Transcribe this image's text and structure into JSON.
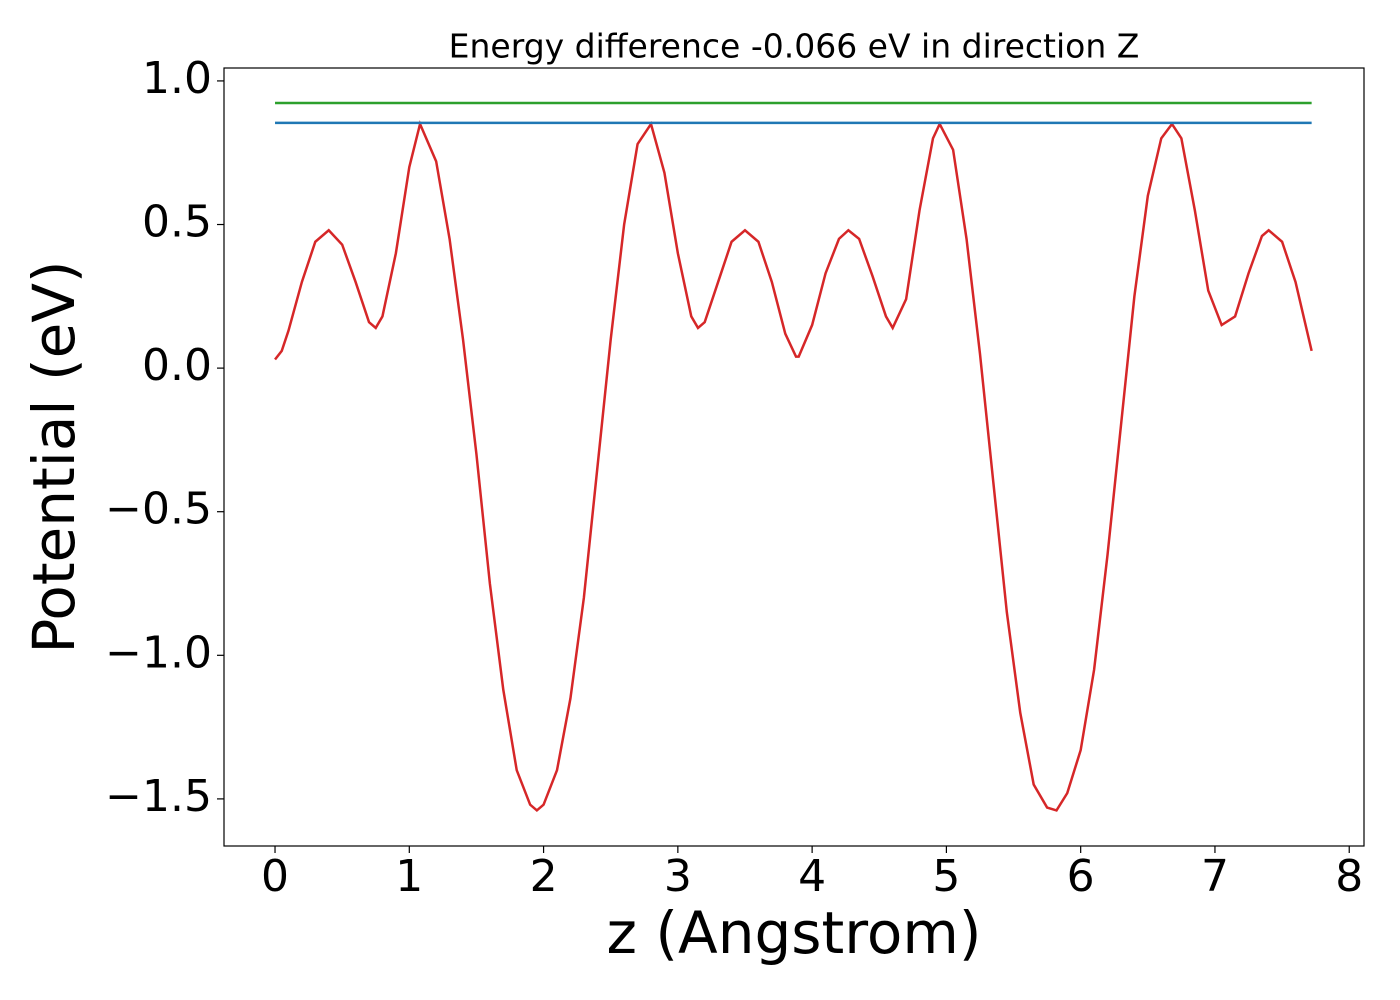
{
  "chart_data": {
    "type": "line",
    "title": "Energy difference -0.066 eV in direction Z",
    "xlabel": "z (Angstrom)",
    "ylabel": "Potential (eV)",
    "xlim": [
      -0.38,
      8.11
    ],
    "ylim": [
      -1.664,
      1.045
    ],
    "xticks": [
      0,
      1,
      2,
      3,
      4,
      5,
      6,
      7,
      8
    ],
    "yticks": [
      {
        "value": -1.5,
        "label": "−1.5"
      },
      {
        "value": -1.0,
        "label": "−1.0"
      },
      {
        "value": -0.5,
        "label": "−0.5"
      },
      {
        "value": 0.0,
        "label": "0.0"
      },
      {
        "value": 0.5,
        "label": "0.5"
      },
      {
        "value": 1.0,
        "label": "1.0"
      }
    ],
    "series": [
      {
        "color": "#d62728",
        "x": [
          0,
          0.05,
          0.1,
          0.2,
          0.3,
          0.4,
          0.5,
          0.6,
          0.7,
          0.75,
          0.8,
          0.9,
          1.0,
          1.08,
          1.2,
          1.3,
          1.4,
          1.5,
          1.6,
          1.7,
          1.8,
          1.9,
          1.95,
          2.0,
          2.1,
          2.2,
          2.3,
          2.4,
          2.5,
          2.6,
          2.7,
          2.8,
          2.9,
          3.0,
          3.1,
          3.15,
          3.2,
          3.3,
          3.4,
          3.5,
          3.6,
          3.7,
          3.8,
          3.88,
          3.9,
          4.0,
          4.1,
          4.2,
          4.27,
          4.35,
          4.45,
          4.55,
          4.6,
          4.7,
          4.8,
          4.9,
          4.95,
          5.05,
          5.15,
          5.25,
          5.35,
          5.45,
          5.55,
          5.65,
          5.75,
          5.82,
          5.9,
          6.0,
          6.1,
          6.2,
          6.3,
          6.4,
          6.5,
          6.6,
          6.68,
          6.75,
          6.85,
          6.95,
          7.05,
          7.15,
          7.25,
          7.35,
          7.4,
          7.5,
          7.6,
          7.7,
          7.72
        ],
        "values": [
          0.03,
          0.06,
          0.13,
          0.3,
          0.44,
          0.48,
          0.43,
          0.3,
          0.16,
          0.14,
          0.18,
          0.4,
          0.7,
          0.85,
          0.72,
          0.45,
          0.1,
          -0.3,
          -0.75,
          -1.12,
          -1.4,
          -1.52,
          -1.54,
          -1.52,
          -1.4,
          -1.15,
          -0.8,
          -0.35,
          0.1,
          0.5,
          0.78,
          0.85,
          0.68,
          0.4,
          0.18,
          0.14,
          0.16,
          0.3,
          0.44,
          0.48,
          0.44,
          0.3,
          0.12,
          0.04,
          0.04,
          0.15,
          0.33,
          0.45,
          0.48,
          0.45,
          0.32,
          0.18,
          0.14,
          0.24,
          0.55,
          0.8,
          0.85,
          0.76,
          0.45,
          0.05,
          -0.4,
          -0.85,
          -1.2,
          -1.45,
          -1.53,
          -1.54,
          -1.48,
          -1.33,
          -1.05,
          -0.65,
          -0.2,
          0.25,
          0.6,
          0.8,
          0.85,
          0.8,
          0.55,
          0.27,
          0.15,
          0.18,
          0.33,
          0.46,
          0.48,
          0.44,
          0.3,
          0.1,
          0.06
        ]
      },
      {
        "color": "#1f77b4",
        "x": [
          0,
          7.72
        ],
        "values": [
          0.854,
          0.854
        ]
      },
      {
        "color": "#2ca02c",
        "x": [
          0,
          7.72
        ],
        "values": [
          0.923,
          0.923
        ]
      }
    ]
  }
}
